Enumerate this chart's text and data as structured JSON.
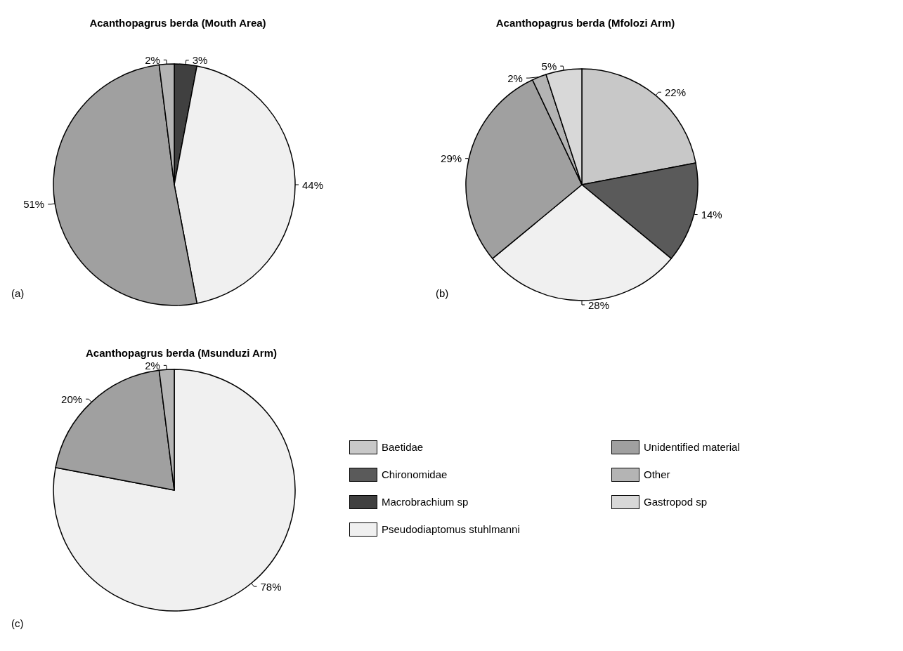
{
  "chart_data": {
    "type": "pie",
    "categories": [
      "Baetidae",
      "Chironomidae",
      "Macrobrachium sp",
      "Pseudodiaptomus stuhlmanni",
      "Unidentified material",
      "Other",
      "Gastropod sp"
    ],
    "colors": [
      "#c8c8c8",
      "#5a5a5a",
      "#404040",
      "#f0f0f0",
      "#a0a0a0",
      "#b4b4b4",
      "#d8d8d8"
    ],
    "series": [
      {
        "name": "Acanthopagrus berda (Mouth Area)",
        "values": [
          null,
          null,
          3,
          44,
          51,
          2,
          null
        ],
        "value_labels": [
          null,
          null,
          "3%",
          "44%",
          "51%",
          "2%",
          null
        ]
      },
      {
        "name": "Acanthopagrus berda (Mfolozi Arm)",
        "values": [
          22,
          14,
          null,
          28,
          29,
          2,
          5
        ],
        "value_labels": [
          "22%",
          "14%",
          null,
          "28%",
          "29%",
          "2%",
          "5%"
        ]
      },
      {
        "name": "Acanthopagrus berda (Msunduzi Arm)",
        "values": [
          null,
          null,
          null,
          78,
          20,
          2,
          null
        ],
        "value_labels": [
          null,
          null,
          null,
          "78%",
          "20%",
          "2%",
          null
        ]
      }
    ],
    "annotations": [
      "(a)",
      "(b)",
      "(c)"
    ],
    "legend": "right"
  }
}
